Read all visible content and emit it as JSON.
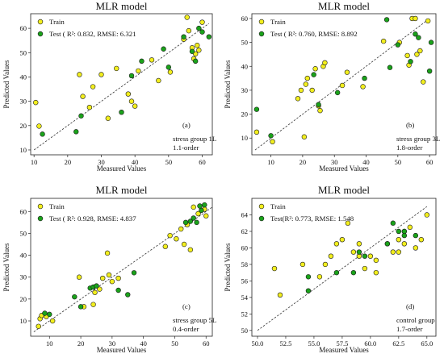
{
  "colors": {
    "train": "#f2ee1e",
    "test": "#1aa21a",
    "edge": "#1b1b1b",
    "fit": "#333333"
  },
  "chart_data": [
    {
      "type": "scatter",
      "title": "MLR model",
      "xlabel": "Measured Values",
      "ylabel": "Predicted Values",
      "xlim": [
        9,
        63
      ],
      "ylim": [
        8,
        66
      ],
      "xticks": [
        10,
        20,
        30,
        40,
        50,
        60
      ],
      "yticks": [
        10,
        20,
        30,
        40,
        50,
        60
      ],
      "legend_train": "Train",
      "legend_test": "Test ( R²: 0.832, RMSE: 6.321",
      "panel_label": "(a)",
      "annotation": [
        "stress group 1L",
        "1.1-order"
      ],
      "fit_line": [
        [
          10,
          10
        ],
        [
          62,
          62
        ]
      ],
      "series": [
        {
          "name": "Train",
          "points": [
            [
              10.5,
              29.5
            ],
            [
              11.5,
              19.8
            ],
            [
              23.5,
              41.0
            ],
            [
              24.5,
              32.0
            ],
            [
              26.5,
              27.5
            ],
            [
              27.5,
              36.0
            ],
            [
              30,
              41.0
            ],
            [
              32,
              23.0
            ],
            [
              34.5,
              43.5
            ],
            [
              38,
              33.0
            ],
            [
              39,
              30.0
            ],
            [
              40,
              28.0
            ],
            [
              41,
              42.5
            ],
            [
              45,
              47.0
            ],
            [
              47,
              38.5
            ],
            [
              50.5,
              42.0
            ],
            [
              54.5,
              55.5
            ],
            [
              55.5,
              64.5
            ],
            [
              56,
              59.0
            ],
            [
              57,
              52.0
            ],
            [
              57.5,
              47.5
            ],
            [
              58,
              49.5
            ],
            [
              58.5,
              53.0
            ],
            [
              59,
              51.0
            ],
            [
              60,
              62.5
            ]
          ]
        },
        {
          "name": "Test",
          "points": [
            [
              12.5,
              16.5
            ],
            [
              22.5,
              17.5
            ],
            [
              24,
              24.0
            ],
            [
              36,
              25.5
            ],
            [
              39,
              40.5
            ],
            [
              42,
              46.5
            ],
            [
              48.5,
              51.5
            ],
            [
              50,
              44.0
            ],
            [
              54.5,
              56.5
            ],
            [
              57,
              50.5
            ],
            [
              58,
              46.5
            ],
            [
              59,
              60.0
            ],
            [
              60,
              58.5
            ],
            [
              62,
              56.5
            ]
          ]
        }
      ]
    },
    {
      "type": "scatter",
      "title": "MLR model",
      "xlabel": "Measured Values",
      "ylabel": "Predicted Values",
      "xlim": [
        4,
        62
      ],
      "ylim": [
        3,
        62
      ],
      "xticks": [
        10,
        20,
        30,
        40,
        50,
        60
      ],
      "yticks": [
        10,
        20,
        30,
        40,
        50,
        60
      ],
      "legend_train": "Train",
      "legend_test": "Test ( R²: 0.760, RMSE: 8.892",
      "panel_label": "(b)",
      "annotation": [
        "stress group 3L",
        "1.8-order"
      ],
      "fit_line": [
        [
          5,
          5
        ],
        [
          60,
          60
        ]
      ],
      "series": [
        {
          "name": "Train",
          "points": [
            [
              5.5,
              12.5
            ],
            [
              10.5,
              8.5
            ],
            [
              18.5,
              26.5
            ],
            [
              19.5,
              30.0
            ],
            [
              20.5,
              10.5
            ],
            [
              21,
              32.5
            ],
            [
              21.5,
              35.0
            ],
            [
              23,
              30.0
            ],
            [
              24,
              39.0
            ],
            [
              25,
              23.5
            ],
            [
              25.5,
              21.5
            ],
            [
              26.5,
              40.0
            ],
            [
              27,
              41.5
            ],
            [
              32.5,
              32.0
            ],
            [
              34,
              37.5
            ],
            [
              39,
              31.5
            ],
            [
              45.5,
              50.5
            ],
            [
              50.5,
              50.0
            ],
            [
              53,
              44.5
            ],
            [
              53.5,
              40.5
            ],
            [
              54.5,
              60.0
            ],
            [
              55.5,
              60.0
            ],
            [
              56,
              45.0
            ],
            [
              57,
              46.5
            ],
            [
              58,
              33.5
            ],
            [
              59.5,
              59.0
            ]
          ]
        },
        {
          "name": "Test",
          "points": [
            [
              5.5,
              22.0
            ],
            [
              10,
              11.0
            ],
            [
              23.5,
              36.5
            ],
            [
              25,
              24.0
            ],
            [
              31,
              29.0
            ],
            [
              39.5,
              35.0
            ],
            [
              46.5,
              59.5
            ],
            [
              47.5,
              39.5
            ],
            [
              50,
              49.0
            ],
            [
              54,
              42.0
            ],
            [
              55.5,
              53.5
            ],
            [
              56.5,
              52.0
            ],
            [
              60,
              38.0
            ],
            [
              60.5,
              50.0
            ]
          ]
        }
      ]
    },
    {
      "type": "scatter",
      "title": "MLR model",
      "xlabel": "Measured Values",
      "ylabel": "Predicted Values",
      "xlim": [
        4,
        62
      ],
      "ylim": [
        3,
        66
      ],
      "xticks": [
        10,
        20,
        30,
        40,
        50,
        60
      ],
      "yticks": [
        10,
        20,
        30,
        40,
        50,
        60
      ],
      "legend_train": "Train",
      "legend_test": "Test ( R²: 0.928, RMSE: 4.837",
      "panel_label": "(c)",
      "annotation": [
        "stress group 5L",
        "0.4-order"
      ],
      "fit_line": [
        [
          5,
          5
        ],
        [
          62,
          62
        ]
      ],
      "series": [
        {
          "name": "Train",
          "points": [
            [
              6.5,
              7.5
            ],
            [
              7,
              11.0
            ],
            [
              7.5,
              12.5
            ],
            [
              9,
              12.0
            ],
            [
              11,
              10.0
            ],
            [
              19.5,
              30.0
            ],
            [
              21,
              16.5
            ],
            [
              24,
              17.5
            ],
            [
              24.5,
              23.0
            ],
            [
              26,
              24.5
            ],
            [
              27,
              29.5
            ],
            [
              28.5,
              41.0
            ],
            [
              29,
              31.0
            ],
            [
              30,
              28.0
            ],
            [
              32,
              29.5
            ],
            [
              47,
              44.0
            ],
            [
              48.5,
              49.0
            ],
            [
              50.5,
              47.5
            ],
            [
              52,
              52.0
            ],
            [
              53,
              45.0
            ],
            [
              54,
              54.0
            ],
            [
              55,
              42.5
            ],
            [
              56,
              62.0
            ],
            [
              57.5,
              59.0
            ],
            [
              59.5,
              61.0
            ],
            [
              60,
              58.0
            ]
          ]
        },
        {
          "name": "Test",
          "points": [
            [
              8.5,
              13.5
            ],
            [
              10,
              13.0
            ],
            [
              18,
              21.0
            ],
            [
              20,
              16.5
            ],
            [
              23,
              25.0
            ],
            [
              24,
              25.5
            ],
            [
              25,
              26.0
            ],
            [
              32,
              24.0
            ],
            [
              35,
              22.0
            ],
            [
              37,
              32.0
            ],
            [
              53.5,
              55.0
            ],
            [
              55,
              55.5
            ],
            [
              56,
              57.0
            ],
            [
              57,
              55.0
            ],
            [
              58,
              62.5
            ],
            [
              58.5,
              60.5
            ],
            [
              59.5,
              63.0
            ]
          ]
        }
      ]
    },
    {
      "type": "scatter",
      "title": "MLR model",
      "xlabel": "Measured Values",
      "ylabel": "Predicted Values",
      "xlim": [
        49.5,
        65.8
      ],
      "ylim": [
        49.3,
        66
      ],
      "xticks": [
        50.0,
        52.5,
        55.0,
        57.5,
        60.0,
        62.5,
        65.0
      ],
      "xtick_labels": [
        "50.0",
        "52.5",
        "55.0",
        "57.5",
        "60.0",
        "62.5",
        "65.0"
      ],
      "yticks": [
        50,
        52,
        54,
        56,
        58,
        60,
        62,
        64
      ],
      "legend_train": "Train",
      "legend_test": "Test(R²: 0.773, RMSE: 1.548",
      "panel_label": "(d)",
      "annotation": [
        "control group",
        "1.7-order"
      ],
      "fit_line": [
        [
          50,
          50
        ],
        [
          65,
          65
        ]
      ],
      "series": [
        {
          "name": "Train",
          "points": [
            [
              51.5,
              57.5
            ],
            [
              52,
              54.3
            ],
            [
              54,
              58.0
            ],
            [
              55.5,
              56.5
            ],
            [
              56,
              58.0
            ],
            [
              56.5,
              59.0
            ],
            [
              57,
              60.5
            ],
            [
              57.5,
              61.0
            ],
            [
              58,
              63.0
            ],
            [
              58.5,
              59.5
            ],
            [
              59,
              60.5
            ],
            [
              59,
              59.0
            ],
            [
              59.5,
              57.5
            ],
            [
              60,
              59.0
            ],
            [
              60.5,
              58.5
            ],
            [
              60.5,
              57.0
            ],
            [
              61.5,
              60.5
            ],
            [
              62,
              59.5
            ],
            [
              62.5,
              61.0
            ],
            [
              62.5,
              59.5
            ],
            [
              63,
              62.0
            ],
            [
              63,
              60.5
            ],
            [
              63.5,
              62.5
            ],
            [
              64,
              60.0
            ],
            [
              64.5,
              61.0
            ],
            [
              65,
              64.0
            ]
          ]
        },
        {
          "name": "Test",
          "points": [
            [
              54.5,
              56.5
            ],
            [
              54.5,
              54.8
            ],
            [
              57,
              57.0
            ],
            [
              58.5,
              57.0
            ],
            [
              59,
              59.5
            ],
            [
              59.5,
              59.0
            ],
            [
              61.5,
              60.5
            ],
            [
              62,
              63.0
            ],
            [
              62.5,
              62.0
            ],
            [
              63,
              61.5
            ],
            [
              63,
              62.0
            ],
            [
              64,
              61.5
            ]
          ]
        }
      ]
    }
  ]
}
